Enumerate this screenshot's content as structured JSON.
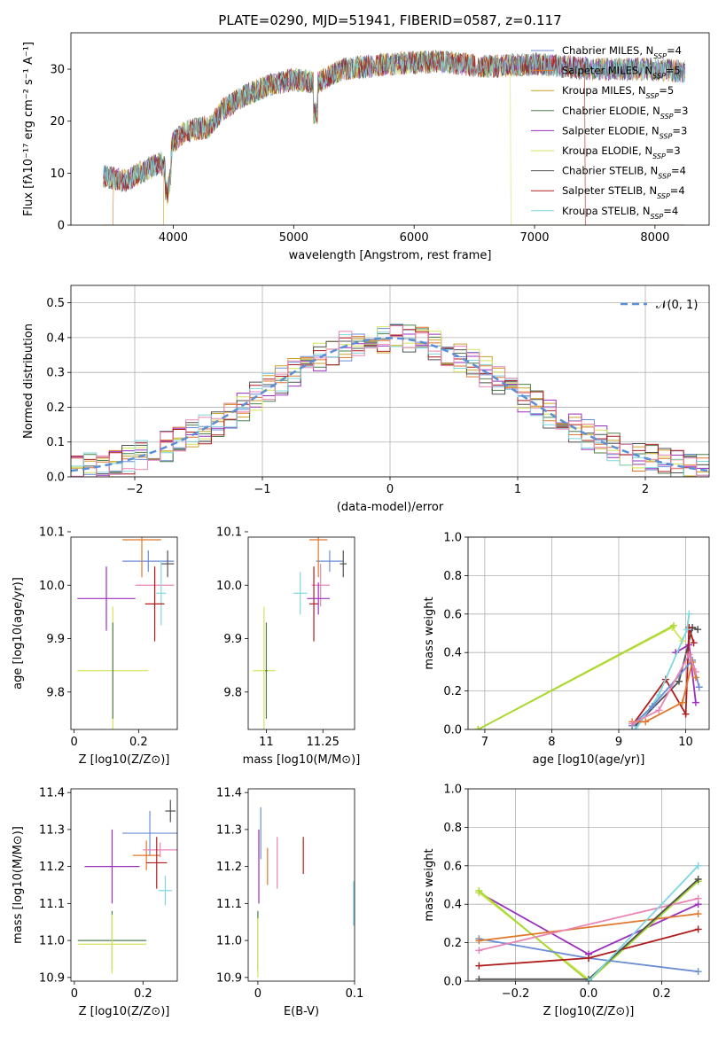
{
  "figure": {
    "title": "PLATE=0290, MJD=51941, FIBERID=0587, z=0.117"
  },
  "colors": {
    "Chabrier MILES": "#6b8ed6",
    "Salpeter MILES": "#e0772a",
    "Kroupa MILES": "#c9a227",
    "Chabrier ELODIE": "#4f7f4f",
    "Salpeter ELODIE": "#9b2fbf",
    "Kroupa ELODIE": "#d4e35a",
    "Chabrier STELIB": "#505050",
    "Salpeter STELIB": "#b01c1c",
    "Kroupa STELIB": "#7fd6e0",
    "pink": "#e985b4",
    "lime": "#a6d832"
  },
  "chart_data": [
    {
      "id": "spectrum",
      "type": "line",
      "xlabel": "wavelength [Angstrom, rest frame]",
      "ylabel": "Flux [f$_\\lambda$10$^{-17}$ erg cm$^{-2}$ s$^{-1}$ A$^{-1}$]",
      "xlim": [
        3150,
        8450
      ],
      "ylim": [
        0,
        37
      ],
      "xticks": [
        4000,
        5000,
        6000,
        7000,
        8000
      ],
      "yticks": [
        0,
        10,
        20,
        30
      ],
      "legend_position": "top-right",
      "legend": [
        {
          "name": "Chabrier MILES",
          "n": "4"
        },
        {
          "name": "Salpeter MILES",
          "n": "5"
        },
        {
          "name": "Kroupa MILES",
          "n": "5"
        },
        {
          "name": "Chabrier ELODIE",
          "n": "3"
        },
        {
          "name": "Salpeter ELODIE",
          "n": "3"
        },
        {
          "name": "Kroupa ELODIE",
          "n": "3"
        },
        {
          "name": "Chabrier STELIB",
          "n": "4"
        },
        {
          "name": "Salpeter STELIB",
          "n": "4"
        },
        {
          "name": "Kroupa STELIB",
          "n": "4"
        }
      ],
      "continuum": [
        [
          3420,
          9.5
        ],
        [
          3600,
          8.5
        ],
        [
          3800,
          11
        ],
        [
          3900,
          12
        ],
        [
          3950,
          10
        ],
        [
          4000,
          16
        ],
        [
          4100,
          18
        ],
        [
          4300,
          19
        ],
        [
          4400,
          22
        ],
        [
          4600,
          25
        ],
        [
          4800,
          27
        ],
        [
          5000,
          28
        ],
        [
          5200,
          27.5
        ],
        [
          5400,
          30
        ],
        [
          5800,
          31
        ],
        [
          6200,
          31.5
        ],
        [
          6600,
          30.5
        ],
        [
          7000,
          31
        ],
        [
          7500,
          30
        ],
        [
          8000,
          30
        ],
        [
          8250,
          29.5
        ]
      ],
      "cutoffs": [
        {
          "model": "Salpeter MILES",
          "from": 3500
        },
        {
          "model": "Kroupa MILES",
          "from": 3920
        },
        {
          "model": "Kroupa ELODIE",
          "to": 6800
        },
        {
          "model": "Salpeter STELIB",
          "to": 7420
        }
      ]
    },
    {
      "id": "residuals",
      "type": "step",
      "xlabel": "(data-model)/error",
      "ylabel": "Normed distribution",
      "xlim": [
        -2.5,
        2.5
      ],
      "ylim": [
        0,
        0.55
      ],
      "xticks": [
        -2,
        -1,
        0,
        1,
        2
      ],
      "xtick_labels": [
        "−2",
        "−1",
        "0",
        "1",
        "2"
      ],
      "yticks": [
        0.0,
        0.1,
        0.2,
        0.3,
        0.4,
        0.5
      ],
      "grid": true,
      "bin_width": 0.1,
      "reference_curve": "N(0,1)",
      "legend": [
        "𝒩(0, 1)"
      ],
      "legend_position": "top-right"
    },
    {
      "id": "age_vs_Z",
      "type": "errorbar",
      "xlabel": "Z [log10(Z/Z⊙)]",
      "ylabel": "age [log10(age/yr)]",
      "xlim": [
        -0.01,
        0.32
      ],
      "ylim": [
        9.73,
        10.09
      ],
      "xticks": [
        0.0,
        0.2
      ],
      "yticks": [
        9.8,
        9.9,
        10.0,
        10.1
      ],
      "points": [
        {
          "model": "Chabrier MILES",
          "x": 0.23,
          "xerr": 0.08,
          "y": 10.045,
          "yerr": 0.02
        },
        {
          "model": "Salpeter MILES",
          "x": 0.21,
          "xerr": 0.06,
          "y": 10.085,
          "yerr": 0.07
        },
        {
          "model": "Chabrier STELIB",
          "x": 0.29,
          "xerr": 0.02,
          "y": 10.04,
          "yerr": 0.025
        },
        {
          "model": "Salpeter ELODIE",
          "x": 0.1,
          "xerr": 0.09,
          "y": 9.975,
          "yerr": 0.06
        },
        {
          "model": "pink",
          "x": 0.25,
          "xerr": 0.06,
          "y": 10.0,
          "yerr": 0.03
        },
        {
          "model": "Kroupa STELIB",
          "x": 0.27,
          "xerr": 0.015,
          "y": 9.985,
          "yerr": 0.06
        },
        {
          "model": "Salpeter STELIB",
          "x": 0.25,
          "xerr": 0.03,
          "y": 9.965,
          "yerr": 0.07
        },
        {
          "model": "Kroupa ELODIE",
          "x": 0.12,
          "xerr": 0.11,
          "y": 9.84,
          "yerr": 0.12
        },
        {
          "model": "Chabrier ELODIE",
          "x": 0.12,
          "xerr": 0.0,
          "y": 9.84,
          "yerr": 0.09
        }
      ]
    },
    {
      "id": "age_vs_mass",
      "type": "errorbar",
      "xlabel": "mass [log10(M/M⊙)]",
      "ylabel": "",
      "xlim": [
        10.92,
        11.39
      ],
      "ylim": [
        9.73,
        10.09
      ],
      "xticks": [
        11.0,
        11.25
      ],
      "yticks": [
        9.8,
        9.9,
        10.0,
        10.1
      ],
      "points": [
        {
          "model": "Chabrier MILES",
          "x": 11.28,
          "xerr": 0.06,
          "y": 10.045,
          "yerr": 0.02
        },
        {
          "model": "Chabrier STELIB",
          "x": 11.34,
          "xerr": 0.015,
          "y": 10.04,
          "yerr": 0.025
        },
        {
          "model": "Salpeter MILES",
          "x": 11.23,
          "xerr": 0.04,
          "y": 10.085,
          "yerr": 0.07
        },
        {
          "model": "Kroupa STELIB",
          "x": 11.15,
          "xerr": 0.03,
          "y": 9.985,
          "yerr": 0.04
        },
        {
          "model": "pink",
          "x": 11.24,
          "xerr": 0.04,
          "y": 10.0,
          "yerr": 0.04
        },
        {
          "model": "Salpeter STELIB",
          "x": 11.21,
          "xerr": 0.02,
          "y": 9.965,
          "yerr": 0.07
        },
        {
          "model": "Salpeter ELODIE",
          "x": 11.23,
          "xerr": 0.05,
          "y": 9.975,
          "yerr": 0.03
        },
        {
          "model": "Kroupa ELODIE",
          "x": 10.99,
          "xerr": 0.05,
          "y": 9.84,
          "yerr": 0.12
        },
        {
          "model": "Chabrier ELODIE",
          "x": 11.0,
          "xerr": 0.005,
          "y": 9.84,
          "yerr": 0.09
        }
      ]
    },
    {
      "id": "massweight_vs_age",
      "type": "line",
      "xlabel": "age [log10(age/yr)]",
      "ylabel": "mass weight",
      "xlim": [
        6.75,
        10.35
      ],
      "ylim": [
        0,
        1
      ],
      "xticks": [
        7,
        8,
        9,
        10
      ],
      "yticks": [
        0.0,
        0.2,
        0.4,
        0.6,
        0.8,
        1.0
      ],
      "grid": true,
      "series": [
        {
          "model": "Kroupa ELODIE",
          "x": [
            6.9,
            9.8,
            9.95
          ],
          "y": [
            0.0,
            0.53,
            0.46
          ]
        },
        {
          "model": "lime",
          "x": [
            6.9,
            9.82
          ],
          "y": [
            0.0,
            0.54
          ]
        },
        {
          "model": "Salpeter ELODIE",
          "x": [
            9.85,
            10.05,
            10.15
          ],
          "y": [
            0.4,
            0.44,
            0.14
          ]
        },
        {
          "model": "Chabrier STELIB",
          "x": [
            9.25,
            9.9,
            10.1,
            10.18
          ],
          "y": [
            0.02,
            0.25,
            0.53,
            0.52
          ]
        },
        {
          "model": "Salpeter STELIB",
          "x": [
            9.2,
            9.7,
            10.0,
            10.05,
            10.12
          ],
          "y": [
            0.02,
            0.26,
            0.08,
            0.53,
            0.45
          ]
        },
        {
          "model": "Kroupa STELIB",
          "x": [
            9.25,
            9.6,
            10.02,
            10.05
          ],
          "y": [
            0.0,
            0.18,
            0.52,
            0.6
          ]
        },
        {
          "model": "Chabrier MILES",
          "x": [
            9.2,
            9.5,
            10.1,
            10.2
          ],
          "y": [
            0.02,
            0.12,
            0.36,
            0.22
          ]
        },
        {
          "model": "Salpeter MILES",
          "x": [
            9.2,
            9.4,
            9.95,
            10.1,
            10.15
          ],
          "y": [
            0.04,
            0.04,
            0.14,
            0.35,
            0.27
          ]
        },
        {
          "model": "pink",
          "x": [
            9.2,
            9.6,
            10.05,
            10.15
          ],
          "y": [
            0.03,
            0.1,
            0.39,
            0.3
          ]
        }
      ]
    },
    {
      "id": "mass_vs_Z",
      "type": "errorbar",
      "xlabel": "Z [log10(Z/Z⊙)]",
      "ylabel": "mass [log10(M/M⊙)]",
      "xlim": [
        -0.01,
        0.3
      ],
      "ylim": [
        10.89,
        11.41
      ],
      "xticks": [
        0.0,
        0.2
      ],
      "yticks": [
        10.9,
        11.0,
        11.1,
        11.2,
        11.3,
        11.4
      ],
      "points": [
        {
          "model": "Chabrier MILES",
          "x": 0.22,
          "xerr": 0.08,
          "y": 11.29,
          "yerr": 0.06
        },
        {
          "model": "Chabrier STELIB",
          "x": 0.28,
          "xerr": 0.015,
          "y": 11.35,
          "yerr": 0.03
        },
        {
          "model": "Salpeter ELODIE",
          "x": 0.11,
          "xerr": 0.08,
          "y": 11.2,
          "yerr": 0.1
        },
        {
          "model": "Salpeter MILES",
          "x": 0.21,
          "xerr": 0.04,
          "y": 11.23,
          "yerr": 0.04
        },
        {
          "model": "pink",
          "x": 0.25,
          "xerr": 0.05,
          "y": 11.245,
          "yerr": 0.02
        },
        {
          "model": "Salpeter STELIB",
          "x": 0.24,
          "xerr": 0.03,
          "y": 11.21,
          "yerr": 0.07
        },
        {
          "model": "Kroupa STELIB",
          "x": 0.265,
          "xerr": 0.02,
          "y": 11.135,
          "yerr": 0.04
        },
        {
          "model": "Chabrier ELODIE",
          "x": 0.11,
          "xerr": 0.1,
          "y": 11.0,
          "yerr": 0.08
        },
        {
          "model": "Kroupa ELODIE",
          "x": 0.11,
          "xerr": 0.1,
          "y": 10.99,
          "yerr": 0.08
        }
      ]
    },
    {
      "id": "mass_vs_EBV",
      "type": "errorbar",
      "xlabel": "E(B-V)",
      "ylabel": "",
      "xlim": [
        -0.01,
        0.1
      ],
      "ylim": [
        10.89,
        11.41
      ],
      "xticks": [
        0.0,
        0.1
      ],
      "yticks": [
        10.9,
        11.0,
        11.1,
        11.2,
        11.3,
        11.4
      ],
      "points": [
        {
          "model": "Chabrier MILES",
          "x": 0.003,
          "xerr": 0,
          "y": 11.29,
          "yerr": 0.07
        },
        {
          "model": "Salpeter ELODIE",
          "x": 0.001,
          "xerr": 0,
          "y": 11.2,
          "yerr": 0.1
        },
        {
          "model": "Salpeter MILES",
          "x": 0.01,
          "xerr": 0,
          "y": 11.2,
          "yerr": 0.05
        },
        {
          "model": "pink",
          "x": 0.02,
          "xerr": 0,
          "y": 11.21,
          "yerr": 0.07
        },
        {
          "model": "Salpeter STELIB",
          "x": 0.047,
          "xerr": 0,
          "y": 11.23,
          "yerr": 0.05
        },
        {
          "model": "Kroupa STELIB",
          "x": 0.099,
          "xerr": 0,
          "y": 11.1,
          "yerr": 0.06
        },
        {
          "model": "Chabrier ELODIE",
          "x": 0.0,
          "xerr": 0,
          "y": 11.0,
          "yerr": 0.08
        },
        {
          "model": "Kroupa ELODIE",
          "x": 0.0,
          "xerr": 0,
          "y": 10.98,
          "yerr": 0.08
        }
      ]
    },
    {
      "id": "massweight_vs_Z",
      "type": "line",
      "xlabel": "Z [log10(Z/Z⊙)]",
      "ylabel": "mass weight",
      "xlim": [
        -0.33,
        0.33
      ],
      "ylim": [
        0,
        1
      ],
      "xticks": [
        -0.2,
        0.0,
        0.2
      ],
      "xtick_labels": [
        "−0.2",
        "0.0",
        "0.2"
      ],
      "yticks": [
        0.0,
        0.2,
        0.4,
        0.6,
        0.8,
        1.0
      ],
      "grid": true,
      "series": [
        {
          "model": "Salpeter ELODIE",
          "x": [
            -0.3,
            0.0,
            0.3
          ],
          "y": [
            0.46,
            0.14,
            0.4
          ]
        },
        {
          "model": "Kroupa ELODIE",
          "x": [
            -0.3,
            0.0,
            0.3
          ],
          "y": [
            0.46,
            0.01,
            0.53
          ]
        },
        {
          "model": "lime",
          "x": [
            -0.3,
            0.0,
            0.3
          ],
          "y": [
            0.47,
            0.0,
            0.52
          ]
        },
        {
          "model": "Chabrier MILES",
          "x": [
            -0.3,
            0.0,
            0.3
          ],
          "y": [
            0.22,
            0.12,
            0.05
          ]
        },
        {
          "model": "Salpeter MILES",
          "x": [
            -0.3,
            0.3
          ],
          "y": [
            0.21,
            0.35
          ]
        },
        {
          "model": "pink",
          "x": [
            -0.3,
            0.3
          ],
          "y": [
            0.16,
            0.43
          ]
        },
        {
          "model": "Salpeter STELIB",
          "x": [
            -0.3,
            0.0,
            0.3
          ],
          "y": [
            0.08,
            0.12,
            0.27
          ]
        },
        {
          "model": "Chabrier STELIB",
          "x": [
            -0.3,
            0.0,
            0.3
          ],
          "y": [
            0.01,
            0.01,
            0.53
          ]
        },
        {
          "model": "Kroupa STELIB",
          "x": [
            0.0,
            0.3
          ],
          "y": [
            0.0,
            0.6
          ]
        }
      ]
    }
  ]
}
